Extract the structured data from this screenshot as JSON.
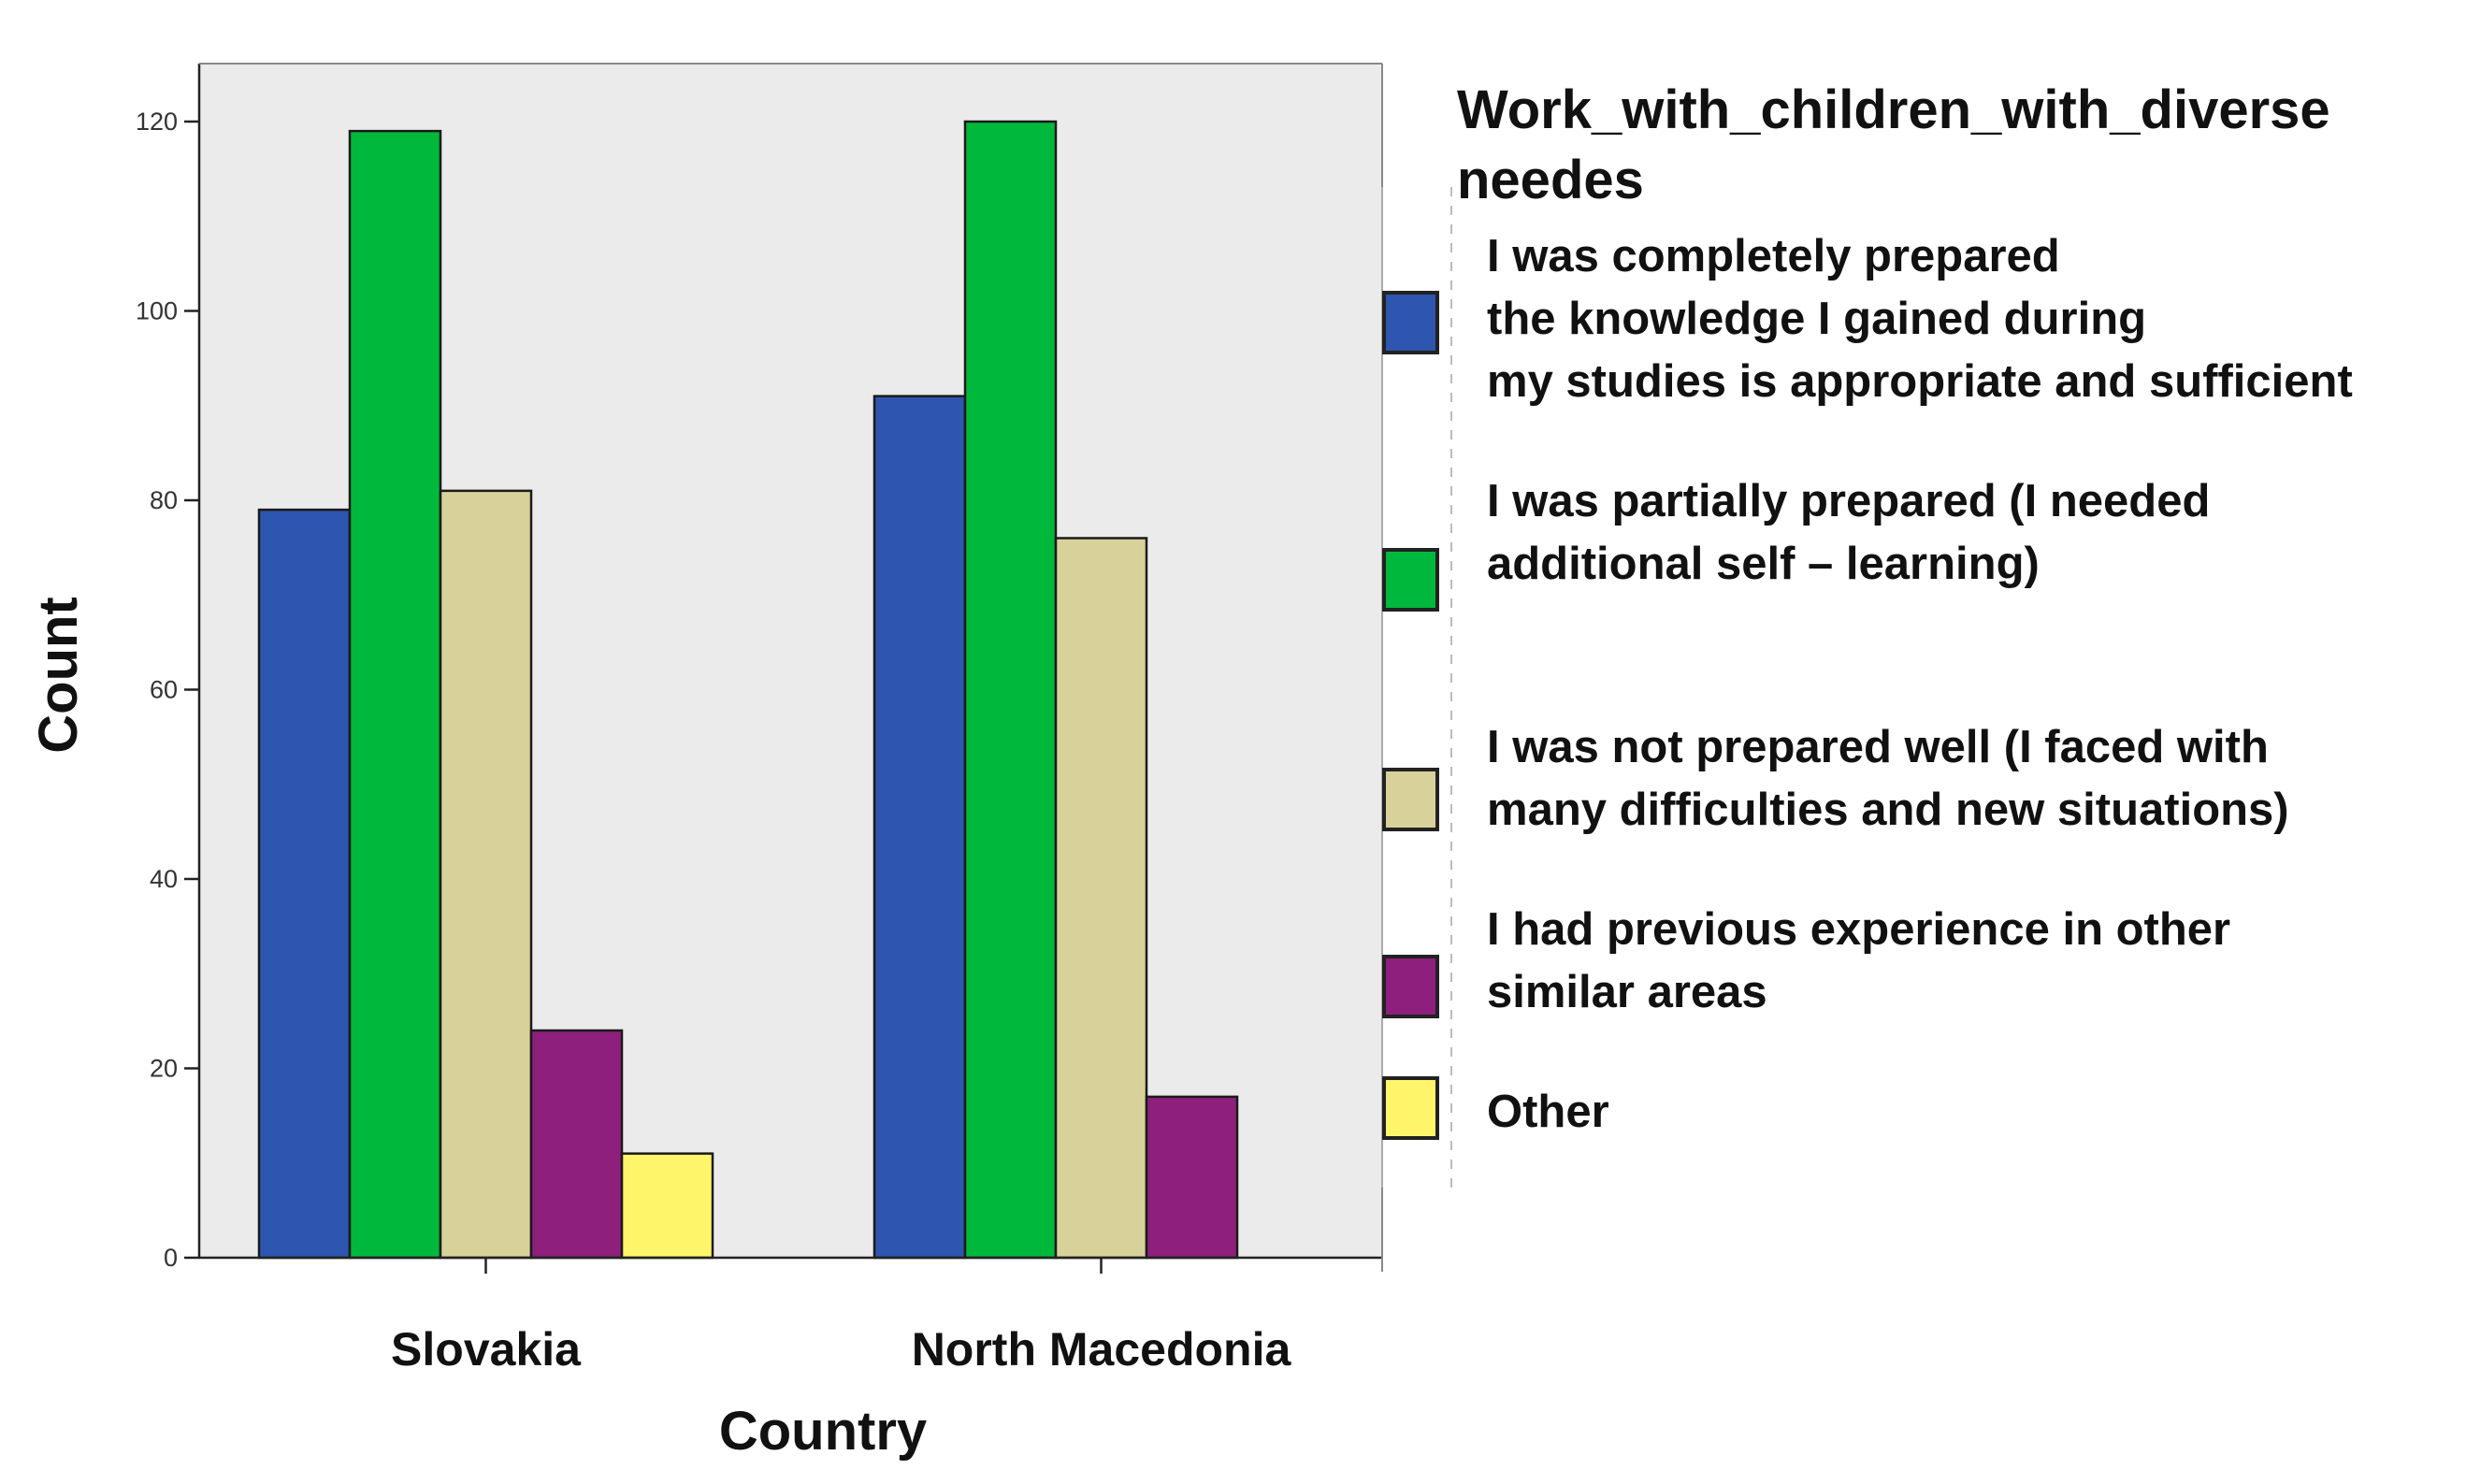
{
  "chart_data": {
    "type": "bar",
    "categories": [
      "Slovakia",
      "North Macedonia"
    ],
    "xlabel": "Country",
    "ylabel": "Count",
    "ylim": [
      0,
      120
    ],
    "yticks": [
      0,
      20,
      40,
      60,
      80,
      100,
      120
    ],
    "grid": false,
    "legend": {
      "title_lines": [
        "Work_with_children_with_diverse",
        "needes"
      ],
      "placement": "right"
    },
    "series": [
      {
        "name": "I was completely prepared the knowledge I gained during my studies is appropriate and sufficient",
        "legend_lines": [
          "I was completely prepared",
          "the knowledge I gained during",
          "my studies is appropriate and sufficient"
        ],
        "color": "#2e56b0",
        "values": [
          79,
          91
        ]
      },
      {
        "name": "I was partially prepared (I needed additional self – learning)",
        "legend_lines": [
          "I was partially prepared (I needed",
          "additional self  – learning)"
        ],
        "color": "#00b93c",
        "values": [
          119,
          120
        ]
      },
      {
        "name": "I was not prepared well (I faced with many difficulties and new situations)",
        "legend_lines": [
          "I was not prepared well (I faced with",
          "many difficulties and new situations)"
        ],
        "color": "#d8d19a",
        "values": [
          81,
          76
        ]
      },
      {
        "name": "I had previous experience in other similar areas",
        "legend_lines": [
          "I had previous experience in other",
          "similar areas"
        ],
        "color": "#8e1f7c",
        "values": [
          24,
          17
        ]
      },
      {
        "name": "Other",
        "legend_lines": [
          "Other"
        ],
        "color": "#fff56a",
        "values": [
          11,
          0
        ]
      }
    ]
  }
}
